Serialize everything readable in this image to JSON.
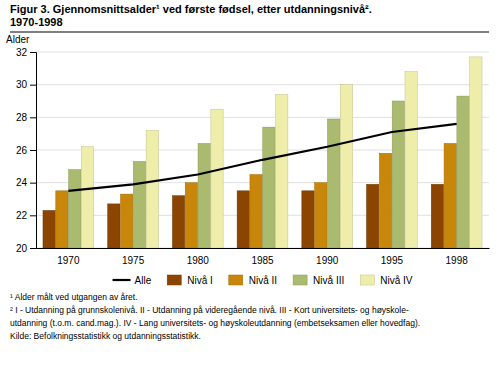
{
  "chart_data": {
    "type": "bar",
    "title": "Figur 3. Gjennomsnittsalder¹ ved første fødsel, etter utdanningsnivå².",
    "subtitle": "1970-1998",
    "ylabel": "Alder",
    "categories": [
      "1970",
      "1975",
      "1980",
      "1985",
      "1990",
      "1995",
      "1998"
    ],
    "series": [
      {
        "name": "Alle",
        "type": "line",
        "color": "#000000",
        "values": [
          23.5,
          23.9,
          24.5,
          25.4,
          26.2,
          27.1,
          27.6
        ]
      },
      {
        "name": "Nivå I",
        "type": "bar",
        "color": "#8B4500",
        "values": [
          22.3,
          22.7,
          23.2,
          23.5,
          23.5,
          23.9,
          23.9
        ]
      },
      {
        "name": "Nivå II",
        "type": "bar",
        "color": "#C8860A",
        "values": [
          23.5,
          23.3,
          24.0,
          24.5,
          24.0,
          25.8,
          26.4
        ]
      },
      {
        "name": "Nivå III",
        "type": "bar",
        "color": "#AABB70",
        "values": [
          24.8,
          25.3,
          26.4,
          27.4,
          27.9,
          29.0,
          29.3
        ]
      },
      {
        "name": "Nivå IV",
        "type": "bar",
        "color": "#EEEEAA",
        "values": [
          26.2,
          27.2,
          28.5,
          29.4,
          30.0,
          30.8,
          31.7
        ]
      }
    ],
    "ylim": [
      20,
      32
    ],
    "yticks": [
      20,
      22,
      24,
      26,
      28,
      30,
      32
    ],
    "grid": true,
    "legend": "bottom",
    "annotations": [
      "¹ Alder målt ved utgangen av året.",
      "² I - Utdanning på grunnskolenivå.  II - Utdanning på videregående nivå.  III - Kort universitets- og høyskole-",
      "utdanning (t.o.m. cand.mag.).  IV - Lang universitets- og høyskoleutdanning (embetseksamen eller hovedfag).",
      "Kilde: Befolkningsstatistikk og utdanningsstatistikk."
    ]
  }
}
